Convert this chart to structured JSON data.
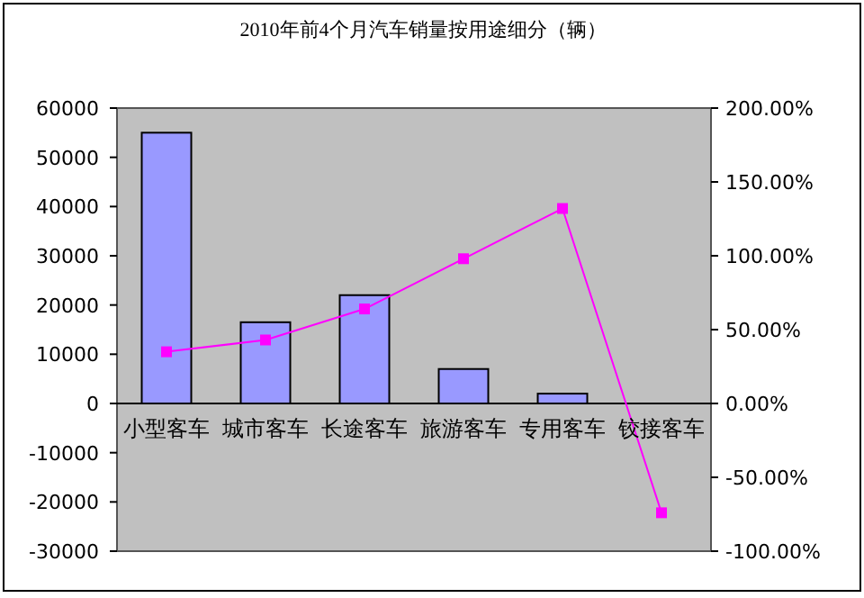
{
  "chart_data": {
    "type": "bar",
    "title": "2010年前4个月汽车销量按用途细分（辆）",
    "categories": [
      "小型客车",
      "城市客车",
      "长途客车",
      "旅游客车",
      "专用客车",
      "铰接客车"
    ],
    "series": [
      {
        "color": "#9999ff",
        "values": [
          55000,
          16500,
          22000,
          7000,
          2000,
          null
        ]
      },
      {
        "type": "line",
        "axis": "y2",
        "color": "#ff00ff",
        "marker": "square",
        "line_style": "solid",
        "values": [
          35,
          43,
          64,
          98,
          132,
          -74
        ]
      }
    ],
    "ylim": [
      -30000,
      60000
    ],
    "yticks": [
      -30000,
      -20000,
      -10000,
      0,
      10000,
      20000,
      30000,
      40000,
      50000,
      60000
    ],
    "y2lim": [
      -100,
      200
    ],
    "y2ticks": [
      {
        "value": -100,
        "label": "-100.00%"
      },
      {
        "value": -50,
        "label": "-50.00%"
      },
      {
        "value": 0,
        "label": "0.00%"
      },
      {
        "value": 50,
        "label": "50.00%"
      },
      {
        "value": 100,
        "label": "100.00%"
      },
      {
        "value": 150,
        "label": "150.00%"
      },
      {
        "value": 200,
        "label": "200.00%"
      }
    ],
    "grid": false
  }
}
